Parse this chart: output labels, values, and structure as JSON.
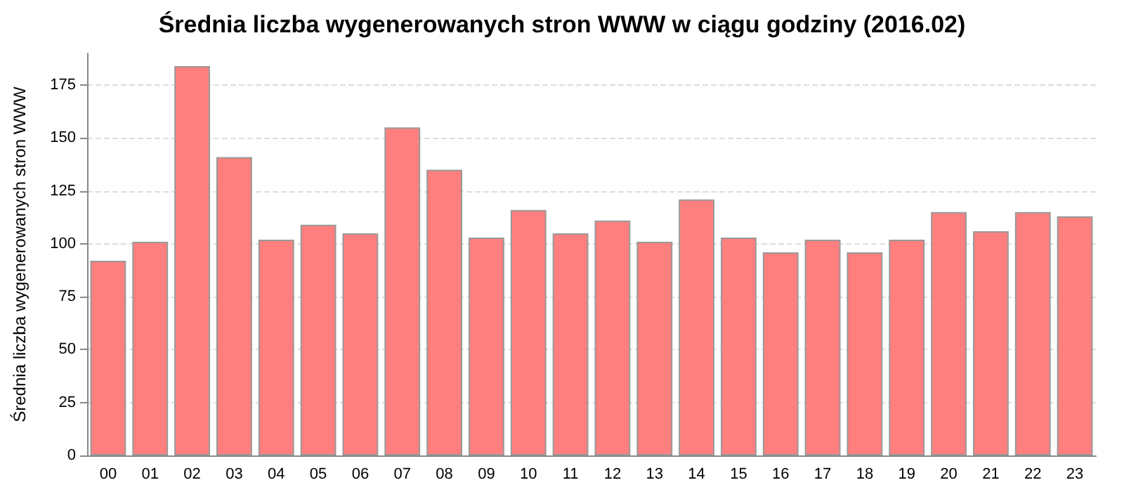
{
  "chart_data": {
    "type": "bar",
    "title": "Średnia liczba wygenerowanych stron WWW w ciągu godziny (2016.02)",
    "ylabel": "Średnia liczba wygenerowanych stron WWW",
    "categories": [
      "00",
      "01",
      "02",
      "03",
      "04",
      "05",
      "06",
      "07",
      "08",
      "09",
      "10",
      "11",
      "12",
      "13",
      "14",
      "15",
      "16",
      "17",
      "18",
      "19",
      "20",
      "21",
      "22",
      "23"
    ],
    "values": [
      92,
      101,
      184,
      141,
      102,
      109,
      105,
      155,
      135,
      103,
      116,
      105,
      111,
      101,
      121,
      103,
      96,
      102,
      96,
      102,
      115,
      106,
      115,
      113
    ],
    "color": "#ff7f7f",
    "ylim": [
      0,
      190
    ],
    "yticks": [
      0,
      25,
      50,
      75,
      100,
      125,
      150,
      175
    ],
    "grid": "y"
  }
}
